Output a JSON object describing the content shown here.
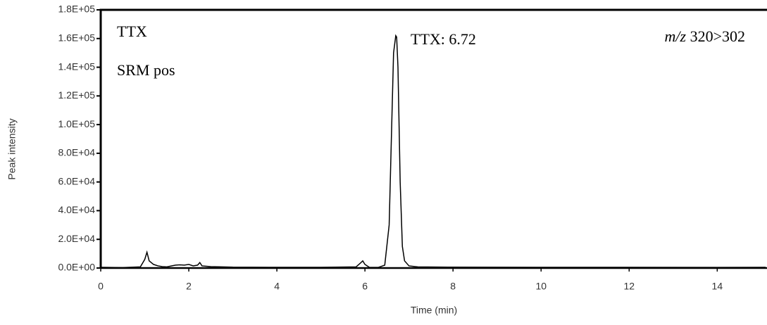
{
  "chart_data": {
    "type": "line",
    "x_label": "Time (min)",
    "y_label": "Peak intensity",
    "annotations": {
      "compound": "TTX",
      "mode": "SRM pos",
      "peak": "TTX: 6.72",
      "mz_label": "m/z",
      "transition": "320>302"
    },
    "x": [
      0,
      0.5,
      0.9,
      1.0,
      1.05,
      1.1,
      1.2,
      1.3,
      1.4,
      1.5,
      1.7,
      1.8,
      1.9,
      2.0,
      2.1,
      2.2,
      2.25,
      2.3,
      2.5,
      3.0,
      4.0,
      5.0,
      5.8,
      5.9,
      5.95,
      6.0,
      6.1,
      6.3,
      6.45,
      6.55,
      6.6,
      6.65,
      6.7,
      6.72,
      6.75,
      6.8,
      6.85,
      6.9,
      7.0,
      7.2,
      8,
      10,
      12,
      14,
      15.1
    ],
    "series": [
      {
        "name": "TTX",
        "color": "#000000",
        "values": [
          500,
          300,
          800,
          6000,
          11000,
          5000,
          2500,
          1500,
          1000,
          800,
          2000,
          2200,
          2000,
          2500,
          1500,
          2000,
          3800,
          1500,
          1000,
          600,
          500,
          500,
          800,
          3500,
          5000,
          2500,
          500,
          400,
          2000,
          30000,
          90000,
          150000,
          162000,
          161000,
          140000,
          60000,
          15000,
          5000,
          1500,
          800,
          600,
          500,
          500,
          400,
          500
        ]
      }
    ],
    "xlim": [
      0,
      15.13
    ],
    "xticks": [
      0,
      2,
      4,
      6,
      8,
      10,
      12,
      14
    ],
    "ylim": [
      0,
      180000
    ],
    "yticks": [
      {
        "value": 0,
        "label": "0.0E+00"
      },
      {
        "value": 20000,
        "label": "2.0E+04"
      },
      {
        "value": 40000,
        "label": "4.0E+04"
      },
      {
        "value": 60000,
        "label": "6.0E+04"
      },
      {
        "value": 80000,
        "label": "8.0E+04"
      },
      {
        "value": 100000,
        "label": "1.0E+05"
      },
      {
        "value": 120000,
        "label": "1.2E+05"
      },
      {
        "value": 140000,
        "label": "1.4E+05"
      },
      {
        "value": 160000,
        "label": "1.6E+05"
      },
      {
        "value": 180000,
        "label": "1.8E+05"
      }
    ]
  }
}
